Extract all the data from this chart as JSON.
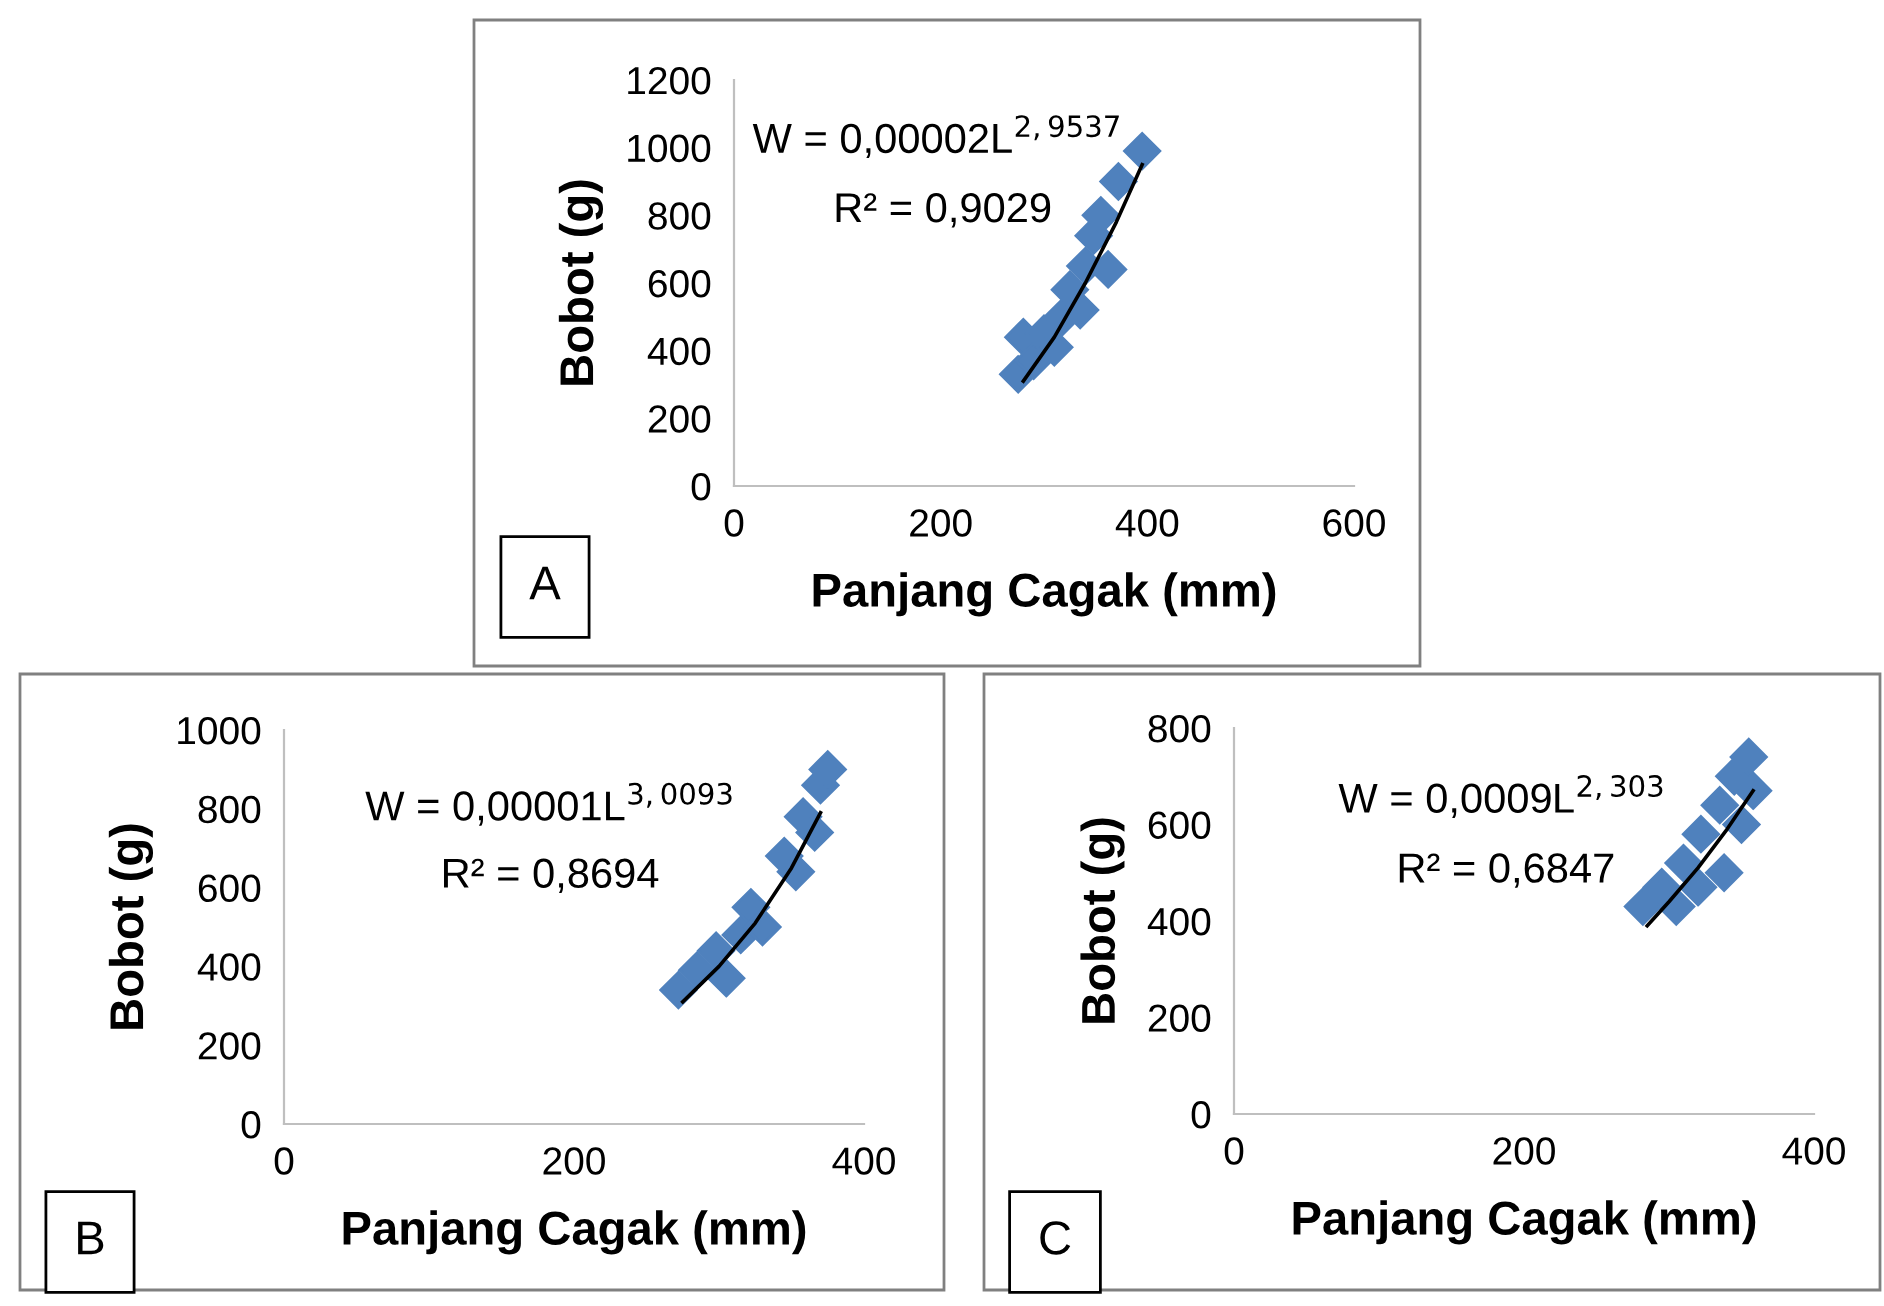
{
  "chart_data": [
    {
      "type": "scatter",
      "xlabel": "Panjang Cagak (mm)",
      "ylabel": "Bobot (g)",
      "xlim": [
        0,
        600
      ],
      "ylim": [
        0,
        1200
      ],
      "xticks": [
        0,
        200,
        400,
        600
      ],
      "yticks": [
        0,
        200,
        400,
        600,
        800,
        1000,
        1200
      ],
      "grid": false,
      "marker": "diamond",
      "annotations": [
        "W = 0,00002L$^{2,9537}$",
        "R² = 0,9029",
        "A"
      ],
      "series": [
        {
          "color": "#4f81bd",
          "x": [
            275,
            280,
            290,
            300,
            310,
            318,
            325,
            335,
            340,
            348,
            355,
            362,
            372,
            395
          ],
          "values": [
            330,
            440,
            370,
            450,
            410,
            500,
            580,
            520,
            650,
            740,
            800,
            640,
            900,
            990
          ]
        },
        {
          "type": "line",
          "color": "#000000",
          "marker": "none",
          "x": [
            280,
            310,
            340,
            370,
            395
          ],
          "values": [
            310,
            440,
            600,
            780,
            950
          ]
        }
      ]
    },
    {
      "type": "scatter",
      "xlabel": "Panjang Cagak (mm)",
      "ylabel": "Bobot (g)",
      "xlim": [
        0,
        400
      ],
      "ylim": [
        0,
        1000
      ],
      "xticks": [
        0,
        200,
        400
      ],
      "yticks": [
        0,
        200,
        400,
        600,
        800,
        1000
      ],
      "grid": false,
      "marker": "diamond",
      "annotations": [
        "W = 0,00001L$^{3,0093}$",
        "R² = 0,8694",
        "B"
      ],
      "series": [
        {
          "color": "#4f81bd",
          "x": [
            272,
            285,
            298,
            305,
            315,
            322,
            330,
            345,
            353,
            358,
            366,
            370,
            375
          ],
          "values": [
            340,
            390,
            440,
            370,
            480,
            550,
            500,
            680,
            640,
            780,
            740,
            860,
            900
          ]
        },
        {
          "type": "line",
          "color": "#000000",
          "marker": "none",
          "x": [
            275,
            300,
            325,
            350,
            370
          ],
          "values": [
            310,
            400,
            510,
            650,
            790
          ]
        }
      ]
    },
    {
      "type": "scatter",
      "xlabel": "Panjang Cagak (mm)",
      "ylabel": "Bobot (g)",
      "xlim": [
        0,
        400
      ],
      "ylim": [
        0,
        800
      ],
      "xticks": [
        0,
        200,
        400
      ],
      "yticks": [
        0,
        200,
        400,
        600,
        800
      ],
      "grid": false,
      "marker": "diamond",
      "annotations": [
        "W = 0,0009L$^{2,303}$",
        "R² = 0,6847",
        "C"
      ],
      "series": [
        {
          "color": "#4f81bd",
          "x": [
            282,
            295,
            305,
            310,
            320,
            322,
            335,
            338,
            345,
            350,
            355,
            358
          ],
          "values": [
            430,
            470,
            430,
            520,
            470,
            580,
            640,
            500,
            700,
            600,
            740,
            670
          ]
        },
        {
          "type": "line",
          "color": "#000000",
          "marker": "none",
          "x": [
            285,
            300,
            320,
            340,
            358
          ],
          "values": [
            390,
            440,
            510,
            590,
            670
          ]
        }
      ]
    }
  ]
}
